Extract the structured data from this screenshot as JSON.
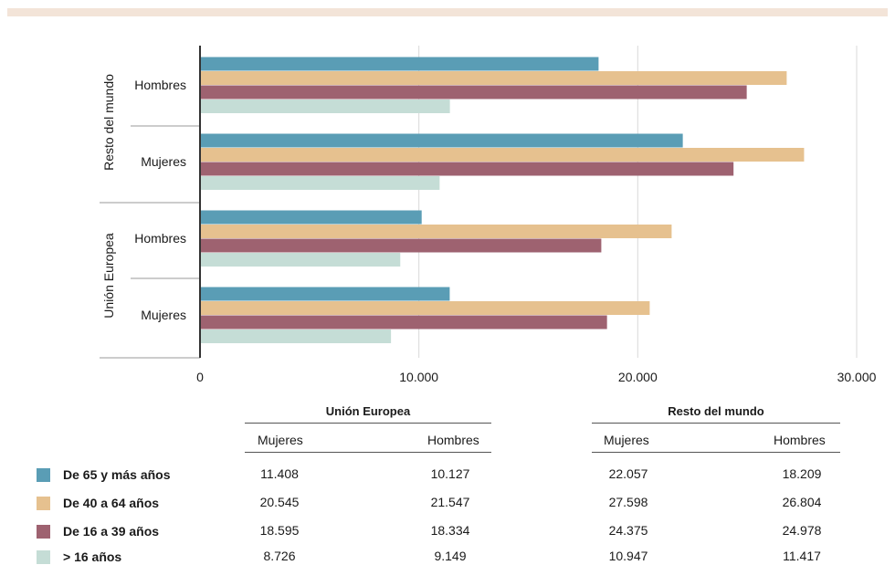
{
  "colors": {
    "bar_65_plus": "#5a9db5",
    "bar_40_64": "#e6c18f",
    "bar_16_39": "#9e6270",
    "bar_under_16": "#c5ddd6",
    "grid": "#d9d9d9",
    "axis": "#333333"
  },
  "chart_data": {
    "type": "bar",
    "orientation": "horizontal",
    "xlim": [
      0,
      30000
    ],
    "x_ticks": [
      "0",
      "10.000",
      "20.000",
      "30.000"
    ],
    "grid": true,
    "groups": [
      {
        "label": "Resto del mundo",
        "categories": [
          {
            "label": "Hombres",
            "values": [
              18209,
              26804,
              24978,
              11417
            ]
          },
          {
            "label": "Mujeres",
            "values": [
              22057,
              27598,
              24375,
              10947
            ]
          }
        ]
      },
      {
        "label": "Unión Europea",
        "categories": [
          {
            "label": "Hombres",
            "values": [
              10127,
              21547,
              18334,
              9149
            ]
          },
          {
            "label": "Mujeres",
            "values": [
              11408,
              20545,
              18595,
              8726
            ]
          }
        ]
      }
    ],
    "series": [
      {
        "name": "De 65 y más años",
        "color": "#5a9db5"
      },
      {
        "name": "De 40 a 64 años",
        "color": "#e6c18f"
      },
      {
        "name": "De 16 a 39 años",
        "color": "#9e6270"
      },
      {
        "name": "> 16 años",
        "color": "#c5ddd6"
      }
    ]
  },
  "table": {
    "groups": [
      {
        "title": "Unión Europea",
        "columns": [
          "Mujeres",
          "Hombres"
        ]
      },
      {
        "title": "Resto del mundo",
        "columns": [
          "Mujeres",
          "Hombres"
        ]
      }
    ],
    "rows": [
      {
        "label": "De 65 y más años",
        "color": "#5a9db5",
        "values": [
          "11.408",
          "10.127",
          "22.057",
          "18.209"
        ]
      },
      {
        "label": "De 40 a 64 años",
        "color": "#e6c18f",
        "values": [
          "20.545",
          "21.547",
          "27.598",
          "26.804"
        ]
      },
      {
        "label": "De 16 a 39 años",
        "color": "#9e6270",
        "values": [
          "18.595",
          "18.334",
          "24.375",
          "24.978"
        ]
      },
      {
        "label": "> 16 años",
        "color": "#c5ddd6",
        "values": [
          "8.726",
          "9.149",
          "10.947",
          "11.417"
        ]
      }
    ]
  }
}
